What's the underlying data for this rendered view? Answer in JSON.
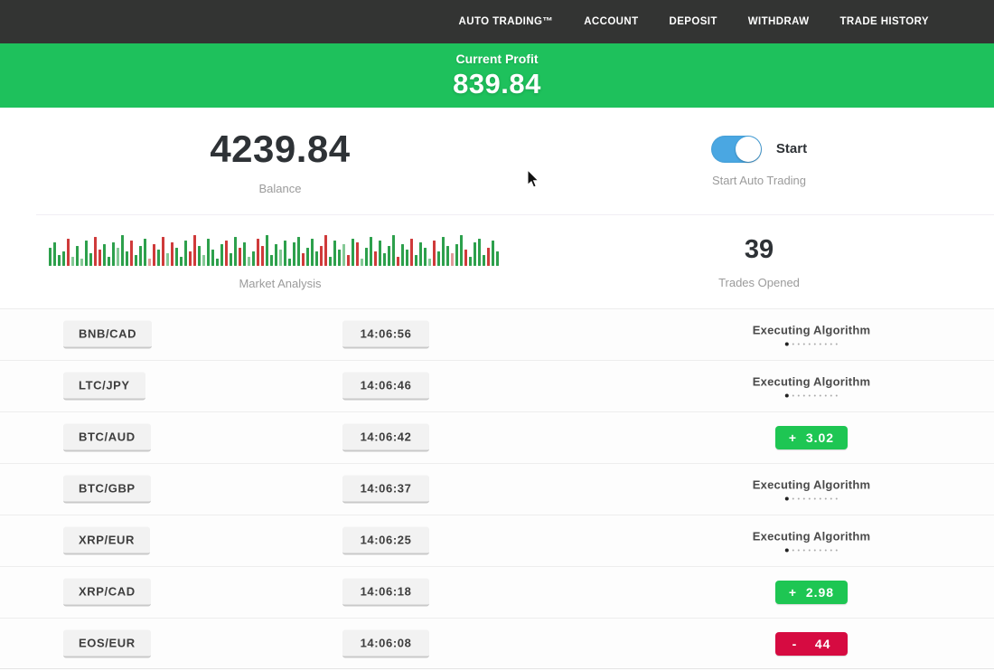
{
  "nav": {
    "items": [
      {
        "label": "AUTO TRADING™"
      },
      {
        "label": "ACCOUNT"
      },
      {
        "label": "DEPOSIT"
      },
      {
        "label": "WITHDRAW"
      },
      {
        "label": "TRADE HISTORY"
      }
    ]
  },
  "banner": {
    "label": "Current Profit",
    "value": "839.84",
    "bg_color": "#1ec15c"
  },
  "stats": {
    "balance": {
      "value": "4239.84",
      "label": "Balance"
    },
    "auto_trading": {
      "toggle_label": "Start",
      "label": "Start Auto Trading",
      "state": "on",
      "toggle_color": "#4aa7e2"
    },
    "market": {
      "label": "Market Analysis",
      "bar_colors": {
        "g": "#2da04c",
        "r": "#cf3a3a",
        "lg": "#85c996",
        "lr": "#e09a9a"
      },
      "bars": [
        [
          20,
          "g"
        ],
        [
          26,
          "g"
        ],
        [
          12,
          "g"
        ],
        [
          16,
          "g"
        ],
        [
          30,
          "r"
        ],
        [
          10,
          "lg"
        ],
        [
          22,
          "g"
        ],
        [
          8,
          "lg"
        ],
        [
          28,
          "g"
        ],
        [
          14,
          "g"
        ],
        [
          32,
          "r"
        ],
        [
          18,
          "r"
        ],
        [
          24,
          "g"
        ],
        [
          10,
          "g"
        ],
        [
          26,
          "g"
        ],
        [
          20,
          "lg"
        ],
        [
          34,
          "g"
        ],
        [
          16,
          "g"
        ],
        [
          28,
          "r"
        ],
        [
          12,
          "g"
        ],
        [
          22,
          "g"
        ],
        [
          30,
          "g"
        ],
        [
          8,
          "lr"
        ],
        [
          24,
          "r"
        ],
        [
          18,
          "g"
        ],
        [
          32,
          "r"
        ],
        [
          14,
          "lg"
        ],
        [
          26,
          "r"
        ],
        [
          20,
          "g"
        ],
        [
          10,
          "g"
        ],
        [
          28,
          "g"
        ],
        [
          16,
          "r"
        ],
        [
          34,
          "r"
        ],
        [
          22,
          "g"
        ],
        [
          12,
          "lg"
        ],
        [
          30,
          "g"
        ],
        [
          18,
          "g"
        ],
        [
          8,
          "g"
        ],
        [
          24,
          "g"
        ],
        [
          28,
          "r"
        ],
        [
          14,
          "g"
        ],
        [
          32,
          "g"
        ],
        [
          20,
          "r"
        ],
        [
          26,
          "g"
        ],
        [
          10,
          "lg"
        ],
        [
          16,
          "g"
        ],
        [
          30,
          "r"
        ],
        [
          22,
          "r"
        ],
        [
          34,
          "g"
        ],
        [
          12,
          "g"
        ],
        [
          24,
          "g"
        ],
        [
          18,
          "lg"
        ],
        [
          28,
          "g"
        ],
        [
          8,
          "g"
        ],
        [
          26,
          "g"
        ],
        [
          32,
          "g"
        ],
        [
          14,
          "r"
        ],
        [
          20,
          "g"
        ],
        [
          30,
          "g"
        ],
        [
          16,
          "g"
        ],
        [
          22,
          "r"
        ],
        [
          34,
          "r"
        ],
        [
          10,
          "g"
        ],
        [
          28,
          "g"
        ],
        [
          18,
          "g"
        ],
        [
          24,
          "lg"
        ],
        [
          12,
          "r"
        ],
        [
          30,
          "g"
        ],
        [
          26,
          "r"
        ],
        [
          8,
          "lg"
        ],
        [
          20,
          "g"
        ],
        [
          32,
          "g"
        ],
        [
          16,
          "r"
        ],
        [
          28,
          "g"
        ],
        [
          14,
          "g"
        ],
        [
          22,
          "g"
        ],
        [
          34,
          "g"
        ],
        [
          10,
          "r"
        ],
        [
          24,
          "g"
        ],
        [
          18,
          "g"
        ],
        [
          30,
          "r"
        ],
        [
          12,
          "g"
        ],
        [
          26,
          "g"
        ],
        [
          20,
          "g"
        ],
        [
          8,
          "lg"
        ],
        [
          28,
          "r"
        ],
        [
          16,
          "g"
        ],
        [
          32,
          "g"
        ],
        [
          22,
          "g"
        ],
        [
          14,
          "lr"
        ],
        [
          24,
          "g"
        ],
        [
          34,
          "g"
        ],
        [
          18,
          "r"
        ],
        [
          10,
          "g"
        ],
        [
          26,
          "g"
        ],
        [
          30,
          "g"
        ],
        [
          12,
          "g"
        ],
        [
          20,
          "r"
        ],
        [
          28,
          "g"
        ],
        [
          16,
          "g"
        ]
      ]
    },
    "trades_opened": {
      "value": "39",
      "label": "Trades Opened"
    }
  },
  "table": {
    "executing_label": "Executing Algorithm",
    "colors": {
      "profit": "#1ec653",
      "loss": "#d60b41"
    },
    "rows": [
      {
        "pair": "BNB/CAD",
        "time": "14:06:56",
        "status": "executing"
      },
      {
        "pair": "LTC/JPY",
        "time": "14:06:46",
        "status": "executing"
      },
      {
        "pair": "BTC/AUD",
        "time": "14:06:42",
        "status": "profit",
        "amount": "+  3.02"
      },
      {
        "pair": "BTC/GBP",
        "time": "14:06:37",
        "status": "executing"
      },
      {
        "pair": "XRP/EUR",
        "time": "14:06:25",
        "status": "executing"
      },
      {
        "pair": "XRP/CAD",
        "time": "14:06:18",
        "status": "profit",
        "amount": "+  2.98"
      },
      {
        "pair": "EOS/EUR",
        "time": "14:06:08",
        "status": "loss",
        "amount": "-    44"
      }
    ]
  }
}
